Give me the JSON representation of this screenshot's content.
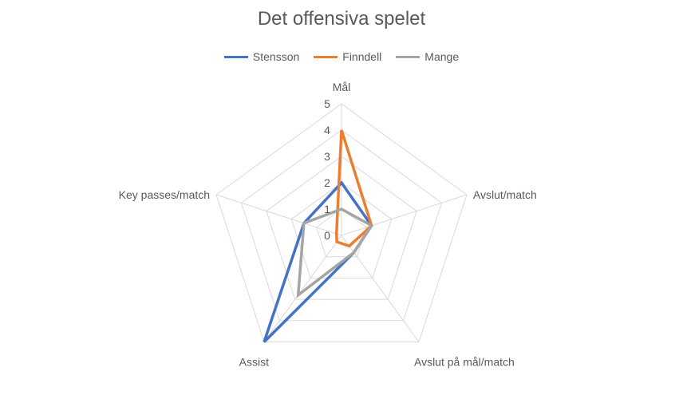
{
  "chart_data": {
    "type": "radar",
    "title": "Det offensiva spelet",
    "categories": [
      "Mål",
      "Avslut/match",
      "Avslut på mål/match",
      "Assist",
      "Key passes/match"
    ],
    "series": [
      {
        "name": "Stensson",
        "values": [
          2,
          1.2,
          0.8,
          5,
          1.5
        ],
        "color": "#4472C4"
      },
      {
        "name": "Finndell",
        "values": [
          4,
          1.2,
          0.5,
          0.3,
          0.2
        ],
        "color": "#ED7D31"
      },
      {
        "name": "Mange",
        "values": [
          1,
          1.2,
          0.8,
          2.8,
          1.5
        ],
        "color": "#A5A5A5"
      }
    ],
    "rlim": [
      0,
      5
    ],
    "ticks": [
      "0",
      "1",
      "2",
      "3",
      "4",
      "5"
    ],
    "grid": true,
    "legend": "top"
  }
}
